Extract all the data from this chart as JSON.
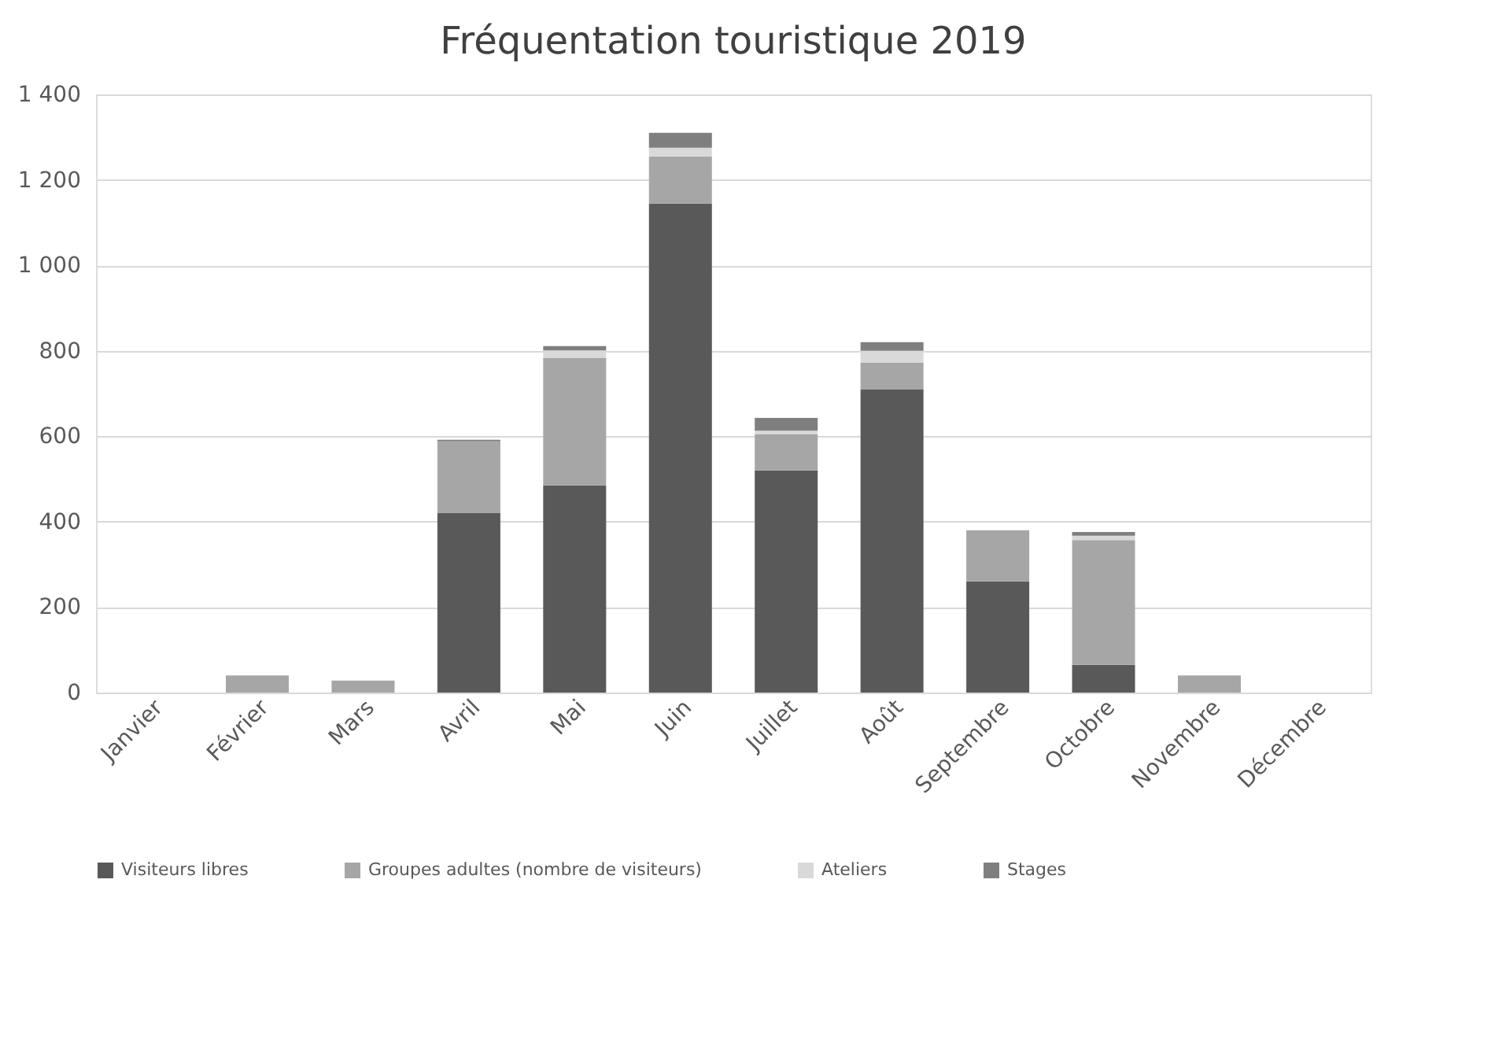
{
  "chart_data": {
    "type": "bar",
    "title": "Fréquentation touristique 2019",
    "stacked": true,
    "categories": [
      "Janvier",
      "Février",
      "Mars",
      "Avril",
      "Mai",
      "Juin",
      "Juillet",
      "Août",
      "Septembre",
      "Octobre",
      "Novembre",
      "Décembre"
    ],
    "series": [
      {
        "name": "Visiteurs libres",
        "color": "#595959",
        "values": [
          null,
          null,
          null,
          420,
          485,
          1145,
          520,
          710,
          260,
          65,
          null,
          null
        ]
      },
      {
        "name": "Groupes adultes (nombre de visiteurs)",
        "color": "#a6a6a6",
        "values": [
          null,
          40,
          28,
          168,
          298,
          110,
          85,
          62,
          120,
          292,
          40,
          null
        ]
      },
      {
        "name": "Ateliers",
        "color": "#d9d9d9",
        "values": [
          null,
          null,
          null,
          null,
          18,
          20,
          8,
          28,
          null,
          10,
          null,
          null
        ]
      },
      {
        "name": "Stages",
        "color": "#7f7f7f",
        "values": [
          null,
          null,
          null,
          4,
          10,
          35,
          30,
          20,
          null,
          9,
          null,
          null
        ]
      }
    ],
    "ylim": [
      0,
      1400
    ],
    "yticks": [
      0,
      200,
      400,
      600,
      800,
      {
        "value": 1000,
        "label": "1 000"
      },
      {
        "value": 1200,
        "label": "1 200"
      },
      {
        "value": 1400,
        "label": "1 400"
      }
    ],
    "grid": "y",
    "legend": "bottom"
  }
}
